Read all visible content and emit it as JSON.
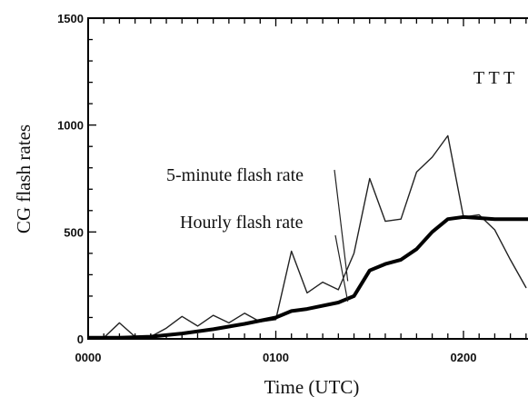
{
  "chart_data": {
    "type": "line",
    "xlabel": "Time (UTC)",
    "ylabel": "CG flash rates",
    "xlim": [
      0,
      150
    ],
    "ylim": [
      0,
      1500
    ],
    "x_ticks": [
      {
        "value": 0,
        "label": "0000"
      },
      {
        "value": 60,
        "label": "0100"
      },
      {
        "value": 120,
        "label": "0200"
      }
    ],
    "y_ticks": [
      {
        "value": 0,
        "label": "0"
      },
      {
        "value": 500,
        "label": "500"
      },
      {
        "value": 1000,
        "label": "1000"
      },
      {
        "value": 1500,
        "label": "1500"
      }
    ],
    "series": [
      {
        "name": "5-minute flash rate",
        "style": "thin",
        "color": "#222222",
        "points": [
          [
            0,
            0
          ],
          [
            5,
            5
          ],
          [
            10,
            75
          ],
          [
            15,
            10
          ],
          [
            20,
            10
          ],
          [
            25,
            50
          ],
          [
            30,
            105
          ],
          [
            35,
            60
          ],
          [
            40,
            110
          ],
          [
            45,
            75
          ],
          [
            50,
            120
          ],
          [
            55,
            80
          ],
          [
            60,
            90
          ],
          [
            65,
            410
          ],
          [
            70,
            215
          ],
          [
            75,
            265
          ],
          [
            80,
            230
          ],
          [
            85,
            400
          ],
          [
            90,
            750
          ],
          [
            95,
            550
          ],
          [
            100,
            560
          ],
          [
            105,
            780
          ],
          [
            110,
            850
          ],
          [
            115,
            950
          ],
          [
            120,
            570
          ],
          [
            125,
            580
          ],
          [
            130,
            510
          ],
          [
            135,
            370
          ],
          [
            140,
            240
          ]
        ]
      },
      {
        "name": "Hourly flash rate",
        "style": "thick",
        "color": "#000000",
        "points": [
          [
            0,
            5
          ],
          [
            10,
            5
          ],
          [
            20,
            10
          ],
          [
            30,
            25
          ],
          [
            40,
            45
          ],
          [
            50,
            70
          ],
          [
            60,
            100
          ],
          [
            65,
            130
          ],
          [
            70,
            140
          ],
          [
            80,
            170
          ],
          [
            85,
            200
          ],
          [
            90,
            320
          ],
          [
            95,
            350
          ],
          [
            100,
            370
          ],
          [
            105,
            420
          ],
          [
            110,
            500
          ],
          [
            115,
            560
          ],
          [
            120,
            570
          ],
          [
            125,
            565
          ],
          [
            130,
            560
          ],
          [
            140,
            560
          ],
          [
            150,
            560
          ]
        ]
      }
    ],
    "annotations": [
      {
        "text": "5-minute flash rate"
      },
      {
        "text": "Hourly flash rate"
      },
      {
        "text": "T T T"
      }
    ]
  }
}
